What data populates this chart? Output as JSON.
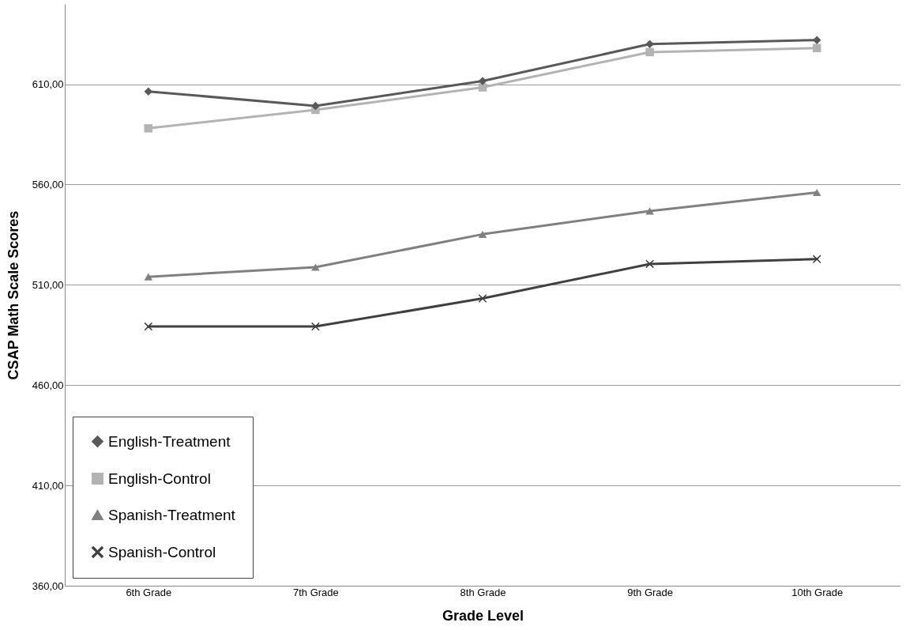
{
  "chart_data": {
    "type": "line",
    "xlabel": "Grade Level",
    "ylabel": "CSAP Math Scale Scores",
    "categories": [
      "6th Grade",
      "7th Grade",
      "8th Grade",
      "9th Grade",
      "10th Grade"
    ],
    "series": [
      {
        "name": "English-Treatment",
        "color": "#595959",
        "marker": "diamond",
        "values": [
          606.4,
          599.2,
          611.6,
          630,
          632
        ]
      },
      {
        "name": "English-Control",
        "color": "#b3b3b3",
        "marker": "square",
        "values": [
          588,
          597.2,
          608.4,
          626,
          628
        ]
      },
      {
        "name": "Spanish-Treatment",
        "color": "#808080",
        "marker": "triangle",
        "values": [
          514,
          518.8,
          535.2,
          546.8,
          556
        ]
      },
      {
        "name": "Spanish-Control",
        "color": "#404040",
        "marker": "cross",
        "values": [
          489.2,
          489.2,
          503.2,
          520.4,
          522.8
        ]
      }
    ],
    "ylim": [
      360,
      650
    ],
    "yticks": [
      {
        "value": 360,
        "label": "360,00"
      },
      {
        "value": 410,
        "label": "410,00"
      },
      {
        "value": 460,
        "label": "460,00"
      },
      {
        "value": 510,
        "label": "510,00"
      },
      {
        "value": 560,
        "label": "560,00"
      },
      {
        "value": 610,
        "label": "610,00"
      }
    ],
    "grid": "y",
    "legend": "bottom left",
    "line_style": "solid"
  }
}
